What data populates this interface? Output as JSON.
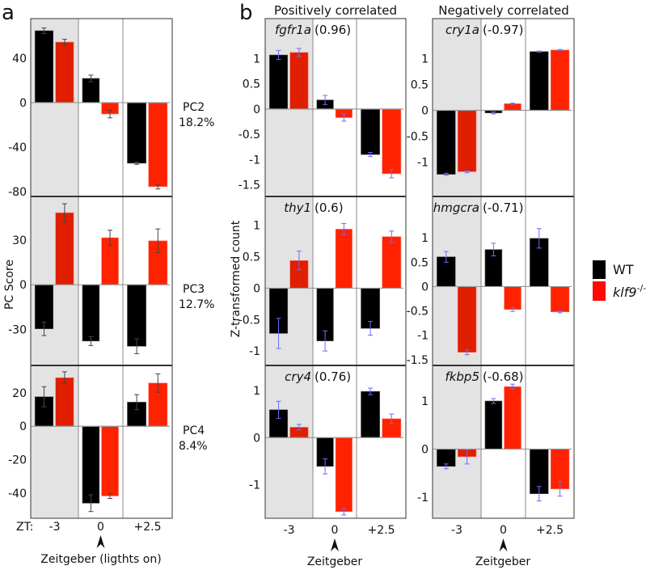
{
  "figure": {
    "panel_a_letter": "a",
    "panel_b_letter": "b",
    "positively_header": "Positively correlated",
    "negatively_header": "Negatively correlated",
    "legend": {
      "wt": "WT",
      "ko_name": "klf9",
      "ko_sup": "-/-"
    },
    "colors": {
      "wt": "#000000",
      "ko": "#ff2200",
      "ko_shaded": "#e01e00",
      "shade": "#e3e3e3",
      "err_a": "#444444",
      "err_b": "#6b6bff"
    }
  },
  "chart_data": [
    {
      "type": "bar",
      "panel": "a",
      "ylabel": "PC Score",
      "x_prefix": "ZT:",
      "categories": [
        "-3",
        "0",
        "+2.5"
      ],
      "xlabel": "Zeitgeber (ligthts on)",
      "shaded_category": "-3",
      "subplots": [
        {
          "label": "PC2",
          "sublabel": "18.2%",
          "ylim": [
            -84.4,
            75.6
          ],
          "yticks": [
            "40",
            "0",
            "-40",
            "-80"
          ],
          "series": [
            {
              "name": "WT",
              "values": [
                64.7,
                21.8,
                -54.5
              ],
              "errors": [
                2.5,
                3,
                1
              ]
            },
            {
              "name": "klf9-/-",
              "values": [
                54.5,
                -10.2,
                -75.6
              ],
              "errors": [
                2.5,
                3.5,
                2
              ]
            }
          ]
        },
        {
          "label": "PC3",
          "sublabel": "12.7%",
          "ylim": [
            -54.2,
            59.3
          ],
          "yticks": [
            "30",
            "0",
            "-30"
          ],
          "series": [
            {
              "name": "WT",
              "values": [
                -29.6,
                -37.8,
                -41.3
              ],
              "errors": [
                4.5,
                3,
                5
              ]
            },
            {
              "name": "klf9-/-",
              "values": [
                48.4,
                31.6,
                29.5
              ],
              "errors": [
                6,
                5,
                8
              ]
            }
          ]
        },
        {
          "label": "PC4",
          "sublabel": "8.4%",
          "ylim": [
            -54.9,
            36.3
          ],
          "yticks": [
            "20",
            "0",
            "-20",
            "-40"
          ],
          "series": [
            {
              "name": "WT",
              "values": [
                17.6,
                -45.9,
                14.4
              ],
              "errors": [
                6,
                5,
                4.5
              ]
            },
            {
              "name": "klf9-/-",
              "values": [
                29,
                -41.6,
                25.8
              ],
              "errors": [
                3.5,
                1.5,
                5.5
              ]
            }
          ]
        }
      ]
    },
    {
      "type": "bar",
      "panel": "b-positive",
      "ylabel": "Z-transformed count",
      "categories": [
        "-3",
        "0",
        "+2.5"
      ],
      "xlabel": "Zeitgeber",
      "shaded_category": "-3",
      "subplots": [
        {
          "gene": "fgfr1a",
          "corr": "(0.96)",
          "ylim": [
            -1.73,
            1.79
          ],
          "yticks": [
            "1",
            "0.5",
            "0",
            "-0.5",
            "-1",
            "-1.5"
          ],
          "series": [
            {
              "name": "WT",
              "values": [
                1.07,
                0.18,
                -0.9
              ],
              "errors": [
                0.09,
                0.09,
                0.04
              ]
            },
            {
              "name": "klf9-/-",
              "values": [
                1.12,
                -0.17,
                -1.28
              ],
              "errors": [
                0.08,
                0.07,
                0.08
              ]
            }
          ]
        },
        {
          "gene": "thy1",
          "corr": "(0.6)",
          "ylim": [
            -1.23,
            1.46
          ],
          "yticks": [
            "1",
            "0.5",
            "0",
            "-0.5",
            "-1"
          ],
          "series": [
            {
              "name": "WT",
              "values": [
                -0.72,
                -0.84,
                -0.64
              ],
              "errors": [
                0.24,
                0.16,
                0.11
              ]
            },
            {
              "name": "klf9-/-",
              "values": [
                0.44,
                0.94,
                0.82
              ],
              "errors": [
                0.15,
                0.09,
                0.09
              ]
            }
          ]
        },
        {
          "gene": "cry4",
          "corr": "(0.76)",
          "ylim": [
            -1.71,
            1.53
          ],
          "yticks": [
            "1",
            "0",
            "-1"
          ],
          "series": [
            {
              "name": "WT",
              "values": [
                0.59,
                -0.61,
                0.98
              ],
              "errors": [
                0.18,
                0.16,
                0.07
              ]
            },
            {
              "name": "klf9-/-",
              "values": [
                0.22,
                -1.57,
                0.4
              ],
              "errors": [
                0.06,
                0.07,
                0.1
              ]
            }
          ]
        }
      ]
    },
    {
      "type": "bar",
      "panel": "b-negative",
      "categories": [
        "-3",
        "0",
        "+2.5"
      ],
      "xlabel": "Zeitgeber",
      "shaded_category": "-3",
      "subplots": [
        {
          "gene": "cry1a",
          "corr": "(-0.97)",
          "ylim": [
            -1.67,
            1.78
          ],
          "yticks": [
            "1",
            "0.5",
            "0",
            "-0.5",
            "-1"
          ],
          "series": [
            {
              "name": "WT",
              "values": [
                -1.24,
                -0.05,
                1.14
              ],
              "errors": [
                0.02,
                0.02,
                0.01
              ]
            },
            {
              "name": "klf9-/-",
              "values": [
                -1.19,
                0.13,
                1.17
              ],
              "errors": [
                0.02,
                0.01,
                0.01
              ]
            }
          ]
        },
        {
          "gene": "hmgcra",
          "corr": "(-0.71)",
          "ylim": [
            -1.62,
            1.85
          ],
          "yticks": [
            "1",
            "0.5",
            "0",
            "-0.5",
            "-1",
            "-1.5"
          ],
          "series": [
            {
              "name": "WT",
              "values": [
                0.61,
                0.76,
                0.99
              ],
              "errors": [
                0.11,
                0.13,
                0.2
              ]
            },
            {
              "name": "klf9-/-",
              "values": [
                -1.35,
                -0.47,
                -0.52
              ],
              "errors": [
                0.05,
                0.04,
                0.02
              ]
            }
          ]
        },
        {
          "gene": "fkbp5",
          "corr": "(-0.68)",
          "ylim": [
            -1.44,
            1.74
          ],
          "yticks": [
            "1",
            "0",
            "-1"
          ],
          "series": [
            {
              "name": "WT",
              "values": [
                -0.36,
                1.0,
                -0.93
              ],
              "errors": [
                0.05,
                0.05,
                0.15
              ]
            },
            {
              "name": "klf9-/-",
              "values": [
                -0.16,
                1.3,
                -0.83
              ],
              "errors": [
                0.15,
                0.05,
                0.15
              ]
            }
          ]
        }
      ]
    }
  ]
}
